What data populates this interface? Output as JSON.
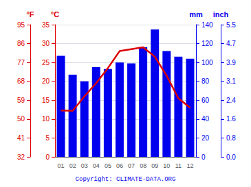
{
  "chart_data": {
    "type": "bar",
    "categories": [
      "01",
      "02",
      "03",
      "04",
      "05",
      "06",
      "07",
      "08",
      "09",
      "10",
      "11",
      "12"
    ],
    "series": [
      {
        "type": "bar",
        "axis": "y2",
        "color": "#0000ee",
        "values": [
          107,
          87,
          80,
          95,
          93,
          100,
          99,
          116,
          135,
          112,
          106,
          104
        ]
      },
      {
        "type": "line",
        "color": "#dd0000",
        "values": [
          12.3,
          12.2,
          16.0,
          19.5,
          23.5,
          28.0,
          28.5,
          29.0,
          26.5,
          21.5,
          15.5,
          13.0
        ]
      }
    ],
    "ylabel": "°C",
    "ylim": [
      0,
      35
    ],
    "yticks": [
      0,
      5,
      10,
      15,
      20,
      25,
      30,
      35
    ],
    "y3label": "°F",
    "y3lim": [
      0,
      35
    ],
    "y3ticks": [
      {
        "value": 0,
        "label": "32"
      },
      {
        "value": 5,
        "label": "41"
      },
      {
        "value": 10,
        "label": "50"
      },
      {
        "value": 15,
        "label": "59"
      },
      {
        "value": 20,
        "label": "68"
      },
      {
        "value": 25,
        "label": "77"
      },
      {
        "value": 30,
        "label": "86"
      },
      {
        "value": 35,
        "label": "95"
      }
    ],
    "y2label": "mm",
    "y2lim": [
      0,
      140
    ],
    "y2ticks": [
      0,
      20,
      40,
      60,
      80,
      100,
      120,
      140
    ],
    "y4label": "inch",
    "y4lim": [
      0,
      140
    ],
    "y4ticks": [
      {
        "value": 0,
        "label": "0.0"
      },
      {
        "value": 20,
        "label": "0.8"
      },
      {
        "value": 40,
        "label": "1.6"
      },
      {
        "value": 60,
        "label": "2.4"
      },
      {
        "value": 80,
        "label": "3.1"
      },
      {
        "value": 100,
        "label": "3.9"
      },
      {
        "value": 120,
        "label": "4.7"
      },
      {
        "value": 140,
        "label": "5.5"
      }
    ],
    "annotations": [
      "Copyright: CLIMATE-DATA.ORG"
    ],
    "grid": true
  }
}
